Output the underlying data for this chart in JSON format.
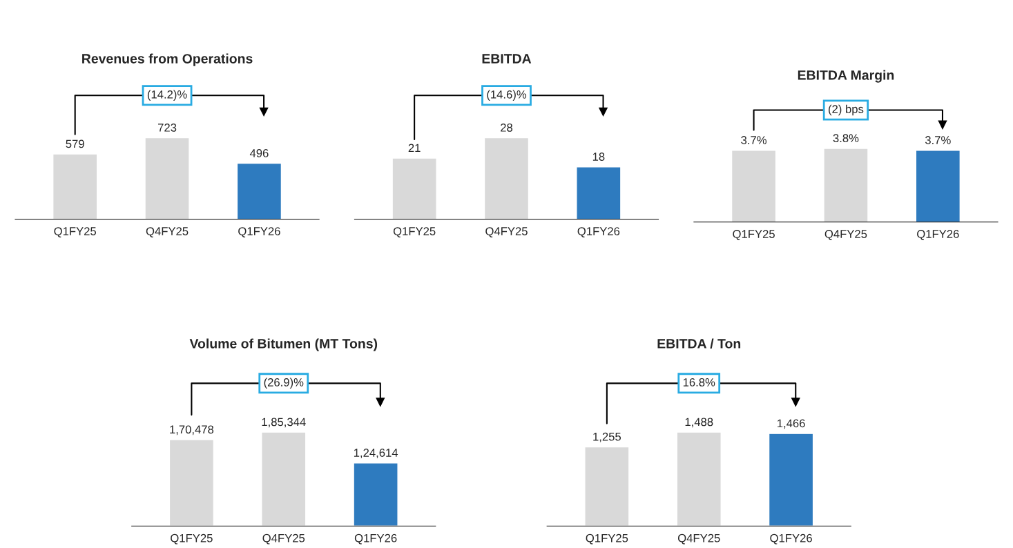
{
  "chart_data": [
    {
      "type": "bar",
      "title": "Revenues from Operations",
      "categories": [
        "Q1FY25",
        "Q4FY25",
        "Q1FY26"
      ],
      "values": [
        579,
        723,
        496
      ],
      "colors": [
        "#d9d9d9",
        "#d9d9d9",
        "#2e7bbf"
      ],
      "data_labels": true,
      "annotations": [
        "(14.2)%"
      ]
    },
    {
      "type": "bar",
      "title": "EBITDA",
      "categories": [
        "Q1FY25",
        "Q4FY25",
        "Q1FY26"
      ],
      "values": [
        21,
        28,
        18
      ],
      "colors": [
        "#d9d9d9",
        "#d9d9d9",
        "#2e7bbf"
      ],
      "data_labels": true,
      "annotations": [
        "(14.6)%"
      ]
    },
    {
      "type": "bar",
      "title": "EBITDA Margin",
      "categories": [
        "Q1FY25",
        "Q4FY25",
        "Q1FY26"
      ],
      "values": [
        3.7,
        3.8,
        3.7
      ],
      "value_labels": [
        "3.7%",
        "3.8%",
        "3.7%"
      ],
      "colors": [
        "#d9d9d9",
        "#d9d9d9",
        "#2e7bbf"
      ],
      "annotations": [
        "(2) bps"
      ]
    },
    {
      "type": "bar",
      "title": "Volume of Bitumen (MT Tons)",
      "categories": [
        "Q1FY25",
        "Q4FY25",
        "Q1FY26"
      ],
      "values": [
        170478,
        185344,
        124614
      ],
      "value_labels": [
        "1,70,478",
        "1,85,344",
        "1,24,614"
      ],
      "colors": [
        "#d9d9d9",
        "#d9d9d9",
        "#2e7bbf"
      ],
      "annotations": [
        "(26.9)%"
      ]
    },
    {
      "type": "bar",
      "title": "EBITDA / Ton",
      "categories": [
        "Q1FY25",
        "Q4FY25",
        "Q1FY26"
      ],
      "values": [
        1255,
        1488,
        1466
      ],
      "value_labels": [
        "1,255",
        "1,488",
        "1,466"
      ],
      "colors": [
        "#d9d9d9",
        "#d9d9d9",
        "#2e7bbf"
      ],
      "annotations": [
        "16.8%"
      ]
    }
  ]
}
